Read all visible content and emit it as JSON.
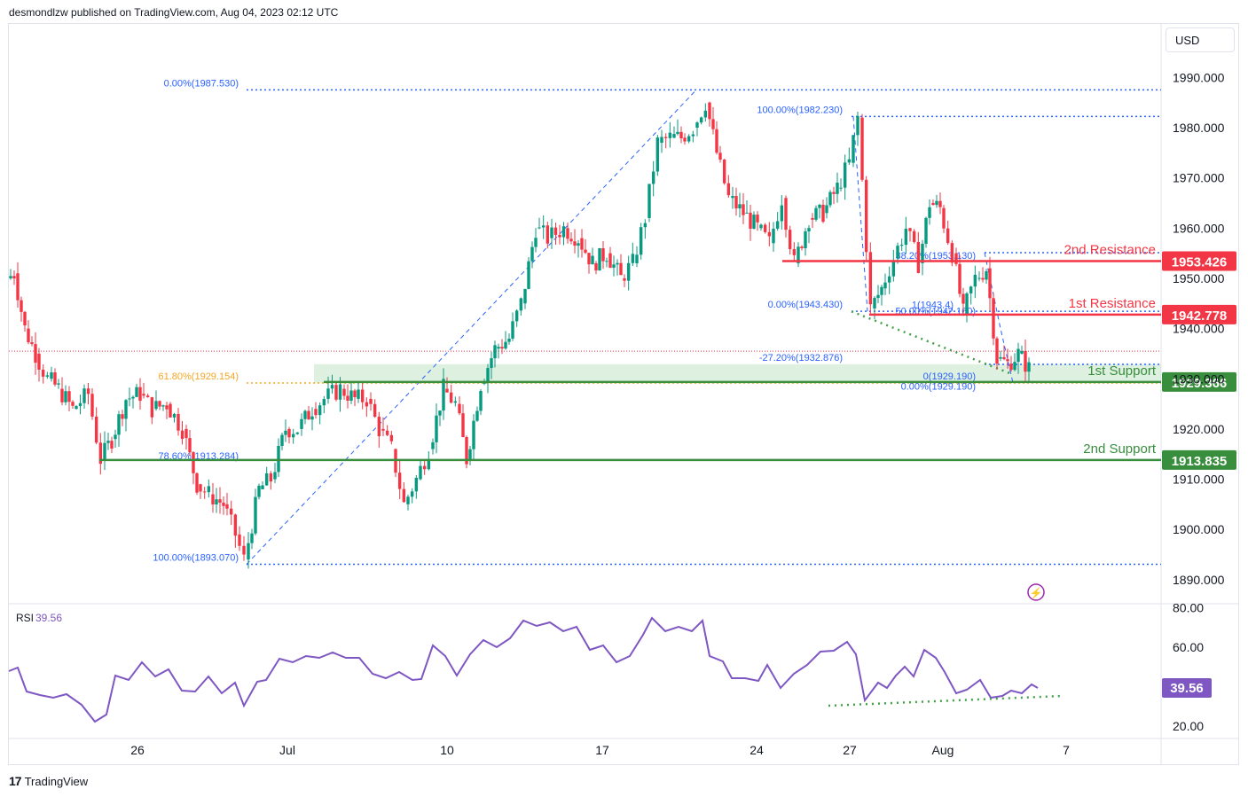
{
  "header": {
    "published": "desmondlzw published on TradingView.com, Aug 04, 2023 02:12 UTC"
  },
  "currency": "USD",
  "footer": {
    "brand": "TradingView"
  },
  "colors": {
    "up": "#089981",
    "down": "#f23645",
    "fib": "#2962ff",
    "rsi": "#7e57c2",
    "support": "#388e3c",
    "resistance": "#f23645"
  },
  "chart_data": [
    {
      "type": "candlestick",
      "title": "",
      "ylim": [
        1885,
        1998
      ],
      "y_ticks": [
        "1990.000",
        "1980.000",
        "1970.000",
        "1960.000",
        "1950.000",
        "1940.000",
        "1930.000",
        "1920.000",
        "1910.000",
        "1900.000",
        "1890.000"
      ],
      "x_ticks": [
        "26",
        "Jul",
        "10",
        "17",
        "24",
        "27",
        "Aug",
        "7"
      ],
      "price_levels": [
        {
          "name": "2nd Resistance",
          "value": 1953.426,
          "label": "1953.426",
          "color": "#f23645"
        },
        {
          "name": "1st Resistance",
          "value": 1942.778,
          "label": "1942.778",
          "color": "#f23645"
        },
        {
          "name": "1st Support",
          "value": 1929.366,
          "label": "1929.366",
          "color": "#388e3c"
        },
        {
          "name": "2nd Support",
          "value": 1913.835,
          "label": "1913.835",
          "color": "#388e3c"
        }
      ],
      "fib_labels": [
        {
          "text": "0.00%(1987.530)",
          "value": 1987.53
        },
        {
          "text": "61.80%(1929.154)",
          "value": 1929.154
        },
        {
          "text": "78.60%(1913.284)",
          "value": 1913.284
        },
        {
          "text": "100.00%(1893.070)",
          "value": 1893.07
        },
        {
          "text": "100.00%(1982.230)",
          "value": 1982.23
        },
        {
          "text": "0.00%(1943.430)",
          "value": 1943.43
        },
        {
          "text": "38.20%(1953.130)",
          "value": 1953.13
        },
        {
          "text": "50.00%(1942.160)",
          "value": 1942.16
        },
        {
          "text": "1(1943.4)",
          "value": 1943.4
        },
        {
          "text": "-27.20%(1932.876)",
          "value": 1932.876
        },
        {
          "text": "0(1929.190)",
          "value": 1929.19
        },
        {
          "text": "0.00%(1929.190)",
          "value": 1929.19
        }
      ],
      "support_zone": [
        1929.2,
        1932.9
      ]
    },
    {
      "type": "line",
      "title": "RSI",
      "series": [
        {
          "name": "RSI",
          "last_value": "39.56"
        }
      ],
      "ylim": [
        15,
        85
      ],
      "y_ticks": [
        "80.00",
        "60.00",
        "20.00"
      ],
      "last_value_label": "39.56"
    }
  ]
}
